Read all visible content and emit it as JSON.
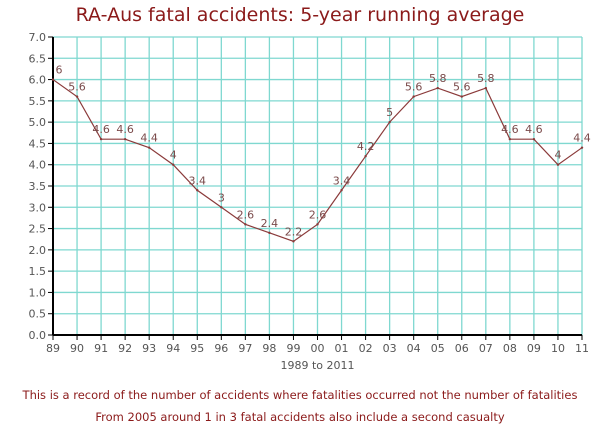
{
  "chart_data": {
    "type": "line",
    "title": "RA-Aus fatal accidents: 5-year running average",
    "xlabel": "1989 to 2011",
    "ylabel": "",
    "categories": [
      "89",
      "90",
      "91",
      "92",
      "93",
      "94",
      "95",
      "96",
      "97",
      "98",
      "99",
      "00",
      "01",
      "02",
      "03",
      "04",
      "05",
      "06",
      "07",
      "08",
      "09",
      "10",
      "11"
    ],
    "values": [
      6,
      5.6,
      4.6,
      4.6,
      4.4,
      4,
      3.4,
      3,
      2.6,
      2.4,
      2.2,
      2.6,
      3.4,
      4.2,
      5,
      5.6,
      5.8,
      5.6,
      5.8,
      4.6,
      4.6,
      4,
      4.4
    ],
    "data_labels": [
      "6",
      "5.6",
      "4.6",
      "4.6",
      "4.4",
      "4",
      "3.4",
      "3",
      "2.6",
      "2.4",
      "2.2",
      "2.6",
      "3.4",
      "4.2",
      "5",
      "5.6",
      "5.8",
      "5.6",
      "5.8",
      "4.6",
      "4.6",
      "4",
      "4.4"
    ],
    "yticks": [
      "0.0",
      "0.5",
      "1.0",
      "1.5",
      "2.0",
      "2.5",
      "3.0",
      "3.5",
      "4.0",
      "4.5",
      "5.0",
      "5.5",
      "6.0",
      "6.5",
      "7.0"
    ],
    "ylim": [
      0,
      7
    ],
    "grid": true,
    "colors": {
      "line": "#8b3a3a",
      "grid": "#7fd8d0",
      "title": "#8b1a1a",
      "label": "#7a4a4a",
      "tick": "#555555"
    }
  },
  "notes": [
    "This is a record of the number of accidents  where fatalities occurred not the number of fatalities",
    "From 2005 around 1 in 3 fatal accidents also include a second casualty"
  ]
}
